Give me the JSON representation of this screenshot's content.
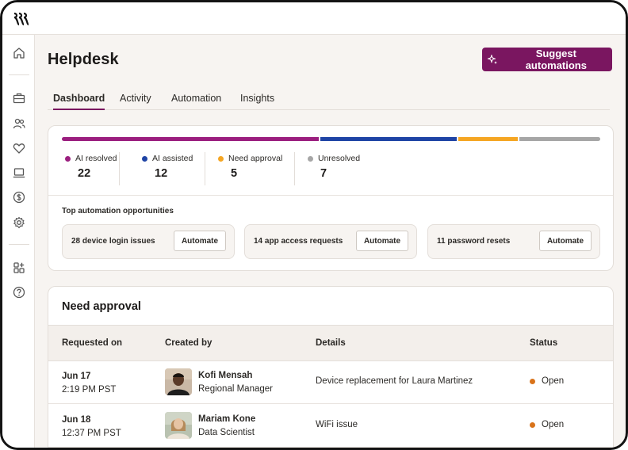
{
  "page": {
    "title": "Helpdesk"
  },
  "header": {
    "suggest_label": "Suggest automations"
  },
  "tabs": [
    {
      "label": "Dashboard",
      "active": true
    },
    {
      "label": "Activity",
      "active": false
    },
    {
      "label": "Automation",
      "active": false
    },
    {
      "label": "Insights",
      "active": false
    }
  ],
  "sidebar": {
    "icons": [
      "home-icon",
      "briefcase-icon",
      "users-icon",
      "heart-icon",
      "laptop-icon",
      "dollar-icon",
      "gear-icon",
      "apps-icon",
      "help-icon"
    ]
  },
  "stats": [
    {
      "label": "AI resolved",
      "value": "22",
      "color": "#9b1f7f"
    },
    {
      "label": "AI assisted",
      "value": "12",
      "color": "#1f44a5"
    },
    {
      "label": "Need approval",
      "value": "5",
      "color": "#f5a623"
    },
    {
      "label": "Unresolved",
      "value": "7",
      "color": "#a6a6a6"
    }
  ],
  "opportunities": {
    "title": "Top automation opportunities",
    "items": [
      {
        "label": "28 device login issues",
        "button": "Automate"
      },
      {
        "label": "14 app access requests",
        "button": "Automate"
      },
      {
        "label": "11 password resets",
        "button": "Automate"
      }
    ]
  },
  "approval": {
    "title": "Need approval",
    "columns": [
      "Requested on",
      "Created by",
      "Details",
      "Status"
    ],
    "rows": [
      {
        "date": "Jun 17",
        "time": "2:19 PM PST",
        "name": "Kofi Mensah",
        "role": "Regional Manager",
        "details": "Device replacement for Laura Martinez",
        "status": "Open"
      },
      {
        "date": "Jun 18",
        "time": "12:37 PM PST",
        "name": "Mariam Kone",
        "role": "Data Scientist",
        "details": "WiFi issue",
        "status": "Open"
      }
    ],
    "status_color": "#d9731a"
  },
  "colors": {
    "accent": "#7a1660"
  }
}
